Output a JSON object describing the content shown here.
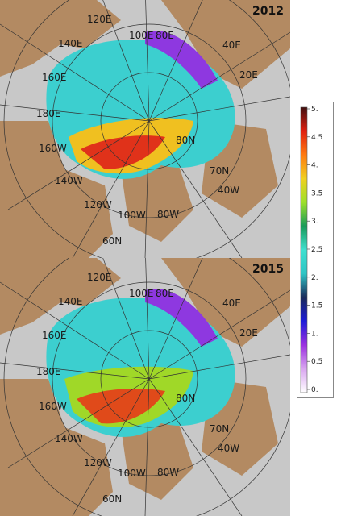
{
  "panels": [
    {
      "year": "2012",
      "labels": {
        "lon_120e": "120E",
        "lon_100e": "100E",
        "lon_80e": "80E",
        "lon_140e": "140E",
        "lon_40e": "40E",
        "lon_160e": "160E",
        "lon_20e": "20E",
        "lon_180e": "180E",
        "lat_80n": "80N",
        "lon_160w": "160W",
        "lat_70n": "70N",
        "lon_140w": "140W",
        "lon_40w": "40W",
        "lon_120w": "120W",
        "lon_100w": "100W",
        "lon_80w": "80W",
        "lat_60n": "60N"
      }
    },
    {
      "year": "2015",
      "labels": {
        "lon_120e": "120E",
        "lon_100e": "100E",
        "lon_80e": "80E",
        "lon_140e": "140E",
        "lon_40e": "40E",
        "lon_160e": "160E",
        "lon_20e": "20E",
        "lon_180e": "180E",
        "lat_80n": "80N",
        "lon_160w": "160W",
        "lat_70n": "70N",
        "lon_140w": "140W",
        "lon_40w": "40W",
        "lon_120w": "120W",
        "lon_100w": "100W",
        "lon_80w": "80W",
        "lat_60n": "60N"
      }
    }
  ],
  "legend": {
    "ticks": [
      "5.",
      "4.5",
      "4.",
      "3.5",
      "3.",
      "2.5",
      "2.",
      "1.5",
      "1.",
      "0.5",
      "0."
    ],
    "colors": [
      "#ffffff",
      "#d9a6f0",
      "#9b30e0",
      "#1b1bd8",
      "#1a2a5a",
      "#2ec4c4",
      "#40e0d0",
      "#1a9a5a",
      "#9de02a",
      "#f0d020",
      "#ff7a10",
      "#e02010",
      "#401010"
    ]
  }
}
